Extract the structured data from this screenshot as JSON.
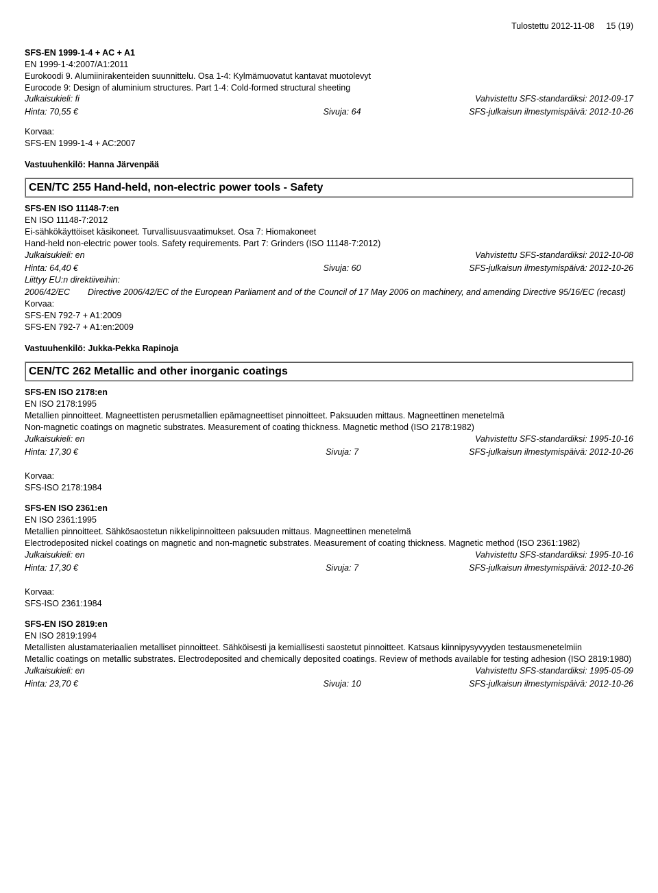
{
  "header": {
    "printed": "Tulostettu 2012-11-08",
    "page": "15 (19)"
  },
  "entry1": {
    "code": "SFS-EN 1999-1-4 + AC + A1",
    "en_code": "EN 1999-1-4:2007/A1:2011",
    "fi_desc": "Eurokoodi 9. Alumiinirakenteiden suunnittelu. Osa 1-4: Kylmämuovatut kantavat muotolevyt",
    "en_desc": "Eurocode 9: Design of aluminium structures. Part 1-4: Cold-formed structural sheeting",
    "lang_label": "Julkaisukieli: fi",
    "vahv": "Vahvistettu SFS-standardiksi: 2012-09-17",
    "hinta": "Hinta: 70,55 €",
    "sivuja": "Sivuja: 64",
    "ilm": "SFS-julkaisun ilmestymispäivä: 2012-10-26",
    "korvaa_label": "Korvaa:",
    "korvaa_val": "SFS-EN 1999-1-4 + AC:2007",
    "vastuu": "Vastuuhenkilö: Hanna Järvenpää"
  },
  "section255": {
    "title": "CEN/TC 255 Hand-held, non-electric power tools - Safety"
  },
  "entry2": {
    "code": "SFS-EN ISO 11148-7:en",
    "en_code": "EN ISO 11148-7:2012",
    "fi_desc": "Ei-sähkökäyttöiset käsikoneet. Turvallisuusvaatimukset. Osa 7: Hiomakoneet",
    "en_desc": "Hand-held non-electric power tools. Safety requirements. Part 7: Grinders (ISO 11148-7:2012)",
    "lang_label": "Julkaisukieli: en",
    "vahv": "Vahvistettu SFS-standardiksi: 2012-10-08",
    "hinta": "Hinta: 64,40 €",
    "sivuja": "Sivuja: 60",
    "ilm": "SFS-julkaisun ilmestymispäivä: 2012-10-26",
    "liittyy": "Liittyy EU:n direktiiveihin:",
    "dir_code": "2006/42/EC",
    "dir_text": "Directive 2006/42/EC of the European Parliament and of the Council of 17 May 2006 on machinery, and amending Directive 95/16/EC (recast)",
    "korvaa_label": "Korvaa:",
    "korvaa_val1": "SFS-EN 792-7 + A1:2009",
    "korvaa_val2": "SFS-EN 792-7 + A1:en:2009",
    "vastuu": "Vastuuhenkilö: Jukka-Pekka Rapinoja"
  },
  "section262": {
    "title": "CEN/TC 262 Metallic and other inorganic coatings"
  },
  "entry3": {
    "code": "SFS-EN ISO 2178:en",
    "en_code": "EN ISO 2178:1995",
    "fi_desc": "Metallien pinnoitteet. Magneettisten perusmetallien epämagneettiset pinnoitteet. Paksuuden mittaus. Magneettinen menetelmä",
    "en_desc": "Non-magnetic coatings on magnetic substrates. Measurement of coating thickness. Magnetic method (ISO 2178:1982)",
    "lang_label": "Julkaisukieli: en",
    "vahv": "Vahvistettu SFS-standardiksi: 1995-10-16",
    "hinta": "Hinta: 17,30 €",
    "sivuja": "Sivuja: 7",
    "ilm": "SFS-julkaisun ilmestymispäivä: 2012-10-26",
    "korvaa_label": "Korvaa:",
    "korvaa_val": "SFS-ISO 2178:1984"
  },
  "entry4": {
    "code": "SFS-EN ISO 2361:en",
    "en_code": "EN ISO 2361:1995",
    "fi_desc": "Metallien pinnoitteet. Sähkösaostetun nikkelipinnoitteen paksuuden mittaus. Magneettinen menetelmä",
    "en_desc": "Electrodeposited nickel coatings on magnetic and non-magnetic substrates. Measurement of coating thickness. Magnetic method (ISO 2361:1982)",
    "lang_label": "Julkaisukieli: en",
    "vahv": "Vahvistettu SFS-standardiksi: 1995-10-16",
    "hinta": "Hinta: 17,30 €",
    "sivuja": "Sivuja: 7",
    "ilm": "SFS-julkaisun ilmestymispäivä: 2012-10-26",
    "korvaa_label": "Korvaa:",
    "korvaa_val": "SFS-ISO 2361:1984"
  },
  "entry5": {
    "code": "SFS-EN ISO 2819:en",
    "en_code": "EN ISO 2819:1994",
    "fi_desc": "Metallisten alustamateriaalien metalliset pinnoitteet. Sähköisesti ja kemiallisesti saostetut pinnoitteet. Katsaus kiinnipysyvyyden testausmenetelmiin",
    "en_desc": "Metallic coatings on metallic substrates. Electrodeposited and chemically deposited coatings. Review of methods available for testing adhesion (ISO 2819:1980)",
    "lang_label": "Julkaisukieli: en",
    "vahv": "Vahvistettu SFS-standardiksi: 1995-05-09",
    "hinta": "Hinta: 23,70 €",
    "sivuja": "Sivuja: 10",
    "ilm": "SFS-julkaisun ilmestymispäivä: 2012-10-26"
  }
}
